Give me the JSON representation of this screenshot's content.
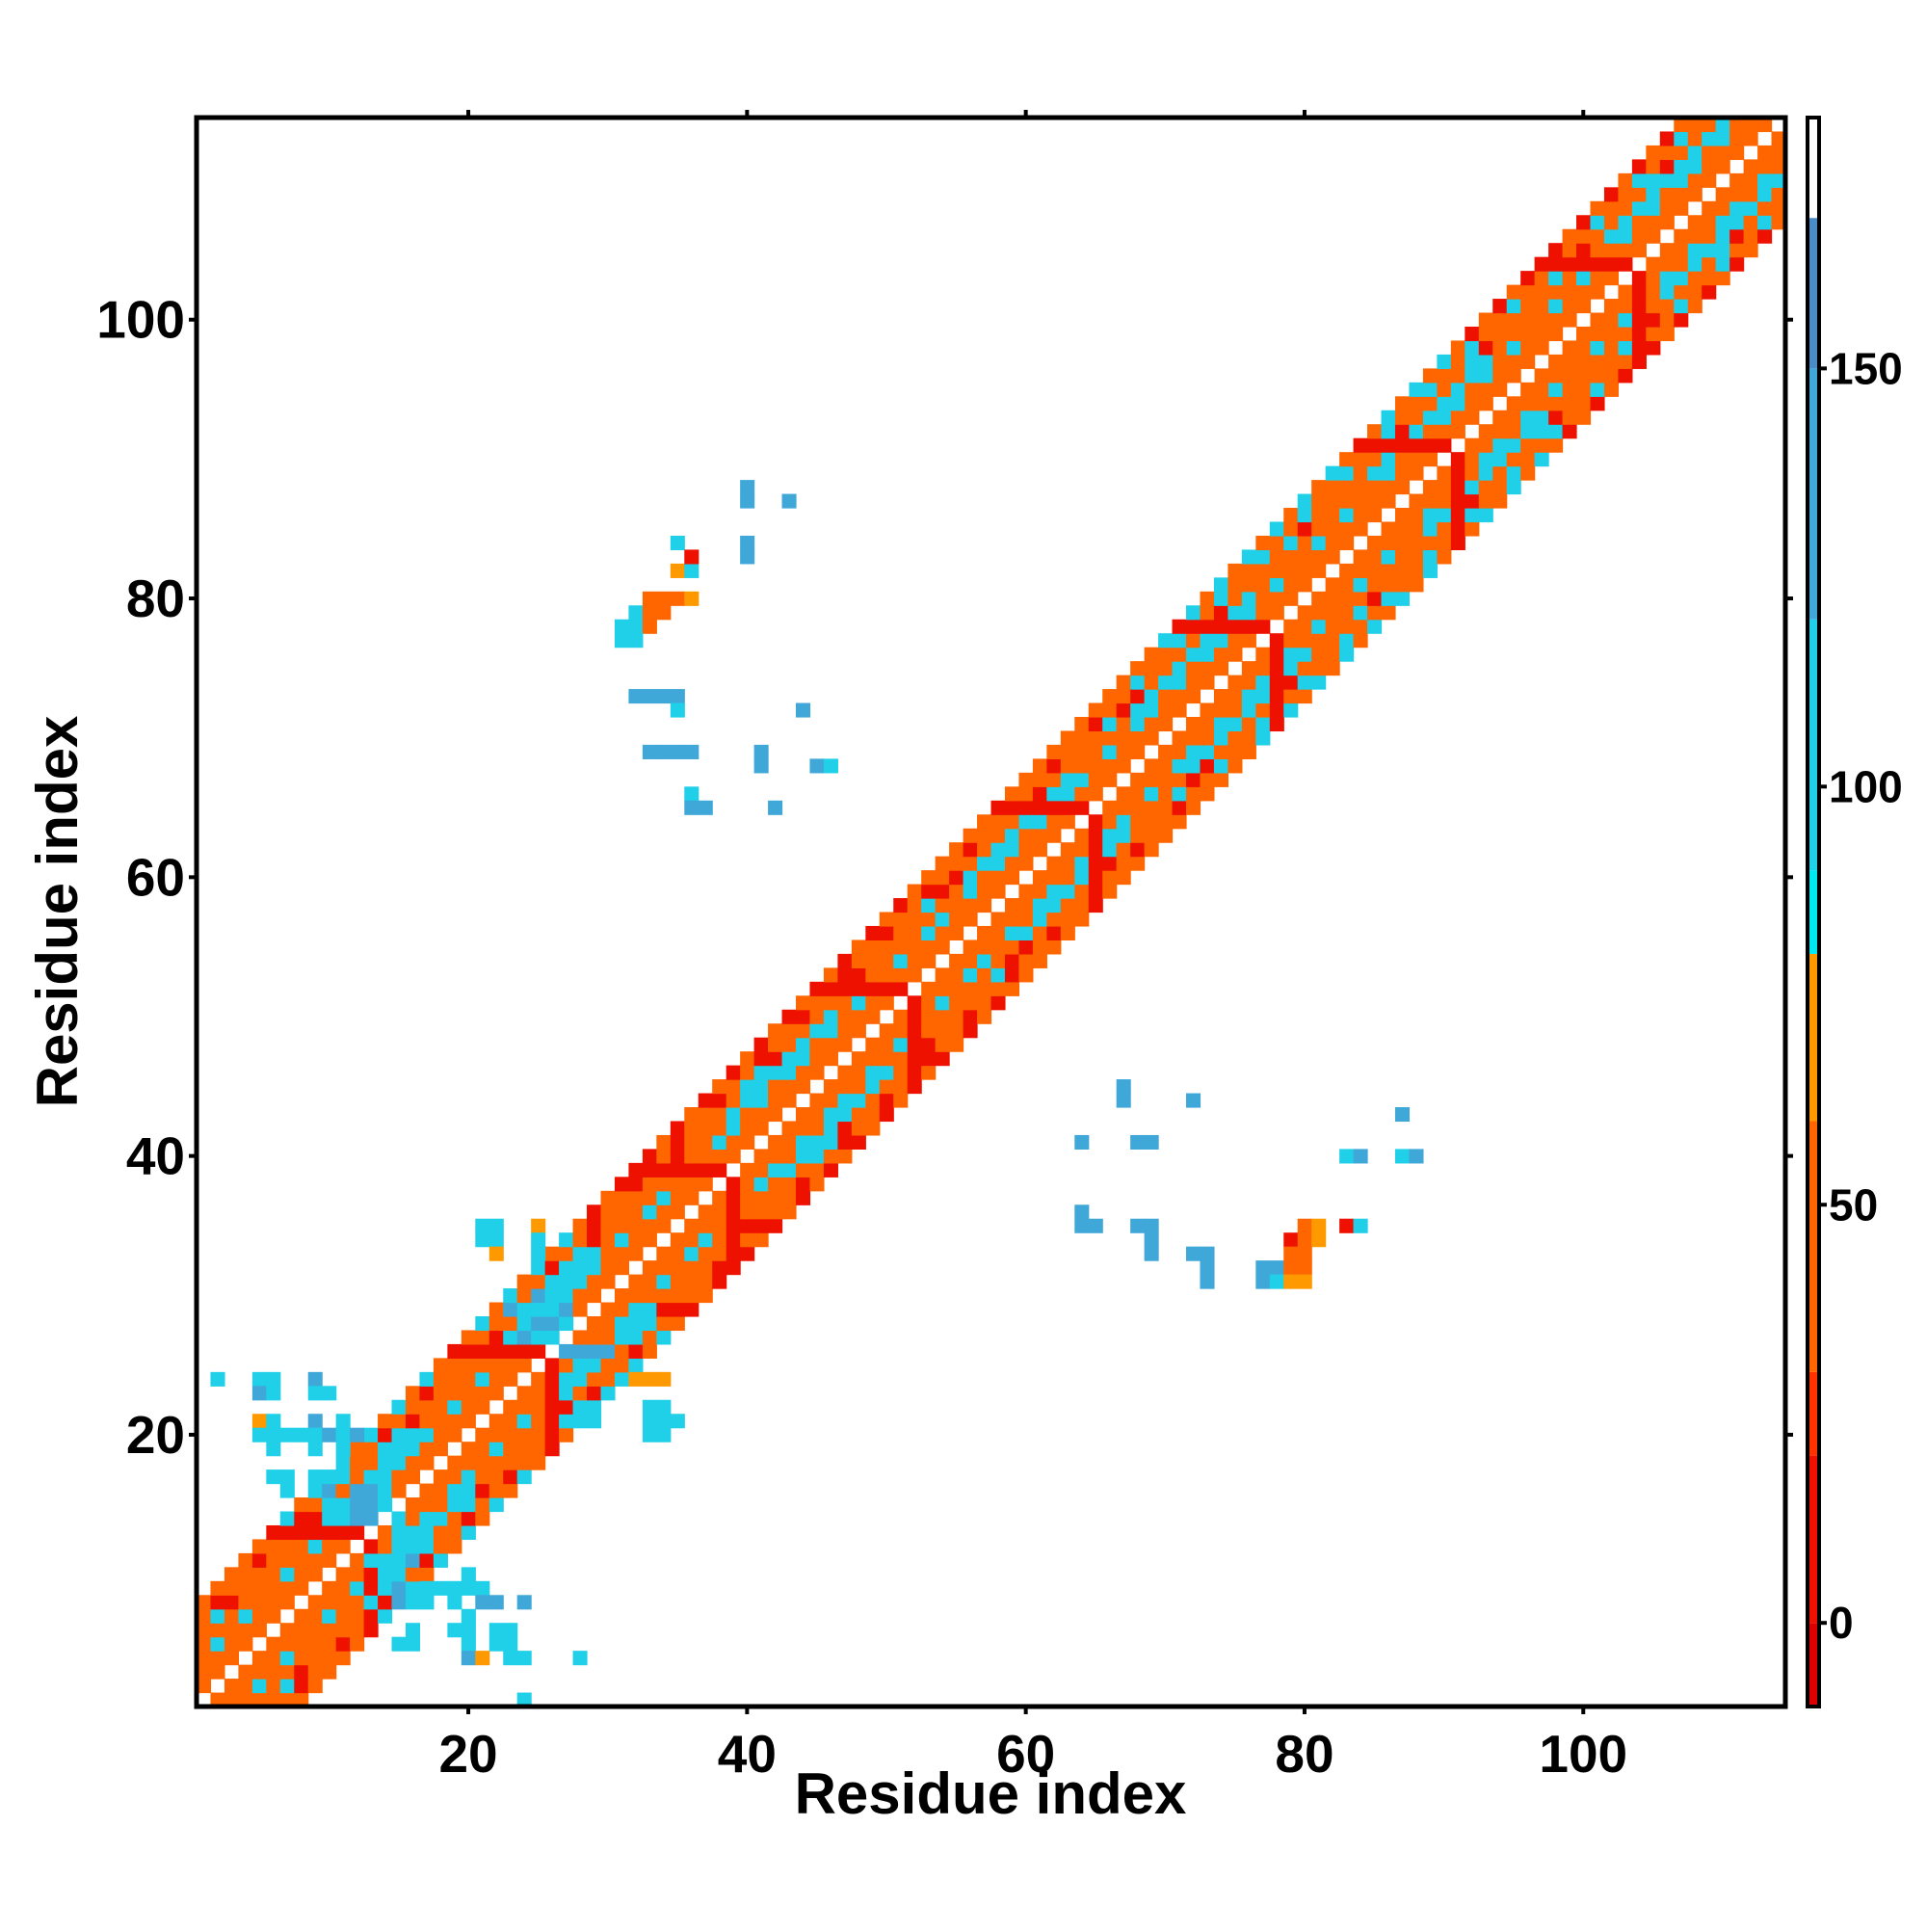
{
  "chart_data": {
    "type": "heatmap",
    "title": "",
    "xlabel": "Residue index",
    "ylabel": "Residue index",
    "xlim": [
      0.5,
      114.5
    ],
    "ylim": [
      0.5,
      114.5
    ],
    "x_ticks": [
      20,
      40,
      60,
      80,
      100
    ],
    "y_ticks": [
      20,
      40,
      60,
      80,
      100
    ],
    "x_tick_labels": [
      "20",
      "40",
      "60",
      "80",
      "100"
    ],
    "y_tick_labels": [
      "20",
      "40",
      "60",
      "80",
      "100"
    ],
    "colorbar": {
      "range": [
        -10,
        180
      ],
      "ticks": [
        0,
        50,
        100,
        150
      ],
      "tick_labels": [
        "0",
        "50",
        "100",
        "150"
      ],
      "bands": [
        {
          "from": -10,
          "to": 0,
          "color": "#dd0000"
        },
        {
          "from": 0,
          "to": 20,
          "color": "#ee1100"
        },
        {
          "from": 20,
          "to": 30,
          "color": "#ff3300"
        },
        {
          "from": 30,
          "to": 60,
          "color": "#ff6600"
        },
        {
          "from": 60,
          "to": 80,
          "color": "#ff9900"
        },
        {
          "from": 80,
          "to": 90,
          "color": "#00e8f0"
        },
        {
          "from": 90,
          "to": 120,
          "color": "#20d0e8"
        },
        {
          "from": 120,
          "to": 150,
          "color": "#40a8d8"
        },
        {
          "from": 150,
          "to": 168,
          "color": "#4a8cc8"
        },
        {
          "from": 168,
          "to": 180,
          "color": "#ffffff"
        }
      ]
    },
    "colors": {
      "red": "#dd0000",
      "orange_red": "#ff3300",
      "orange": "#ff6600",
      "amber": "#ff9900",
      "cyan": "#00e8f0",
      "sky": "#20d0e8",
      "steel": "#40a8d8",
      "blue": "#4a8cc8"
    },
    "diagonal_pattern": {
      "near_diagonal_value_orange": 45,
      "band_value_cyan": 95,
      "band_value_orange_red": 30,
      "band_value_red": 5,
      "band_width": 7
    },
    "cells": [
      [
        33,
        80,
        45
      ],
      [
        34,
        80,
        30
      ],
      [
        35,
        80,
        30
      ],
      [
        36,
        80,
        70
      ],
      [
        32,
        79,
        95
      ],
      [
        33,
        79,
        30
      ],
      [
        34,
        79,
        30
      ],
      [
        31,
        78,
        95
      ],
      [
        32,
        78,
        95
      ],
      [
        33,
        78,
        30
      ],
      [
        31,
        77,
        95
      ],
      [
        32,
        77,
        95
      ],
      [
        35,
        82,
        70
      ],
      [
        36,
        82,
        95
      ],
      [
        35,
        84,
        95
      ],
      [
        36,
        83,
        5
      ],
      [
        40,
        88,
        130
      ],
      [
        40,
        87,
        130
      ],
      [
        43,
        87,
        140
      ],
      [
        40,
        84,
        130
      ],
      [
        40,
        83,
        130
      ],
      [
        32,
        73,
        140
      ],
      [
        33,
        73,
        140
      ],
      [
        34,
        73,
        140
      ],
      [
        35,
        73,
        140
      ],
      [
        35,
        72,
        95
      ],
      [
        44,
        72,
        140
      ],
      [
        33,
        69,
        140
      ],
      [
        34,
        69,
        140
      ],
      [
        35,
        69,
        130
      ],
      [
        36,
        69,
        140
      ],
      [
        41,
        69,
        130
      ],
      [
        41,
        68,
        130
      ],
      [
        45,
        68,
        140
      ],
      [
        46,
        68,
        95
      ],
      [
        36,
        66,
        95
      ],
      [
        37,
        65,
        140
      ],
      [
        36,
        65,
        140
      ],
      [
        42,
        65,
        130
      ],
      [
        67,
        45,
        130
      ],
      [
        67,
        44,
        130
      ],
      [
        72,
        44,
        140
      ],
      [
        64,
        41,
        130
      ],
      [
        68,
        41,
        130
      ],
      [
        69,
        41,
        130
      ],
      [
        64,
        36,
        130
      ],
      [
        64,
        35,
        130
      ],
      [
        65,
        35,
        140
      ],
      [
        68,
        35,
        130
      ],
      [
        69,
        35,
        130
      ],
      [
        69,
        34,
        130
      ],
      [
        69,
        33,
        130
      ],
      [
        72,
        33,
        130
      ],
      [
        73,
        33,
        140
      ],
      [
        73,
        32,
        140
      ],
      [
        73,
        31,
        140
      ],
      [
        87,
        43,
        140
      ],
      [
        83,
        40,
        95
      ],
      [
        84,
        40,
        130
      ],
      [
        87,
        40,
        95
      ],
      [
        88,
        40,
        140
      ],
      [
        80,
        35,
        30
      ],
      [
        81,
        35,
        70
      ],
      [
        83,
        35,
        5
      ],
      [
        84,
        35,
        95
      ],
      [
        79,
        34,
        5
      ],
      [
        80,
        34,
        30
      ],
      [
        81,
        34,
        70
      ],
      [
        79,
        33,
        30
      ],
      [
        80,
        33,
        30
      ],
      [
        77,
        32,
        140
      ],
      [
        78,
        32,
        140
      ],
      [
        79,
        32,
        30
      ],
      [
        80,
        32,
        30
      ],
      [
        77,
        31,
        140
      ],
      [
        78,
        31,
        95
      ],
      [
        79,
        31,
        70
      ],
      [
        80,
        31,
        70
      ],
      [
        21,
        35,
        95
      ],
      [
        22,
        35,
        95
      ],
      [
        25,
        35,
        70
      ],
      [
        21,
        34,
        95
      ],
      [
        22,
        34,
        95
      ],
      [
        25,
        34,
        95
      ],
      [
        22,
        33,
        70
      ],
      [
        25,
        33,
        95
      ],
      [
        26,
        31,
        95
      ],
      [
        27,
        31,
        95
      ],
      [
        25,
        30,
        130
      ],
      [
        26,
        30,
        95
      ],
      [
        27,
        30,
        95
      ],
      [
        23,
        29,
        140
      ],
      [
        24,
        29,
        95
      ],
      [
        26,
        29,
        95
      ],
      [
        27,
        29,
        130
      ],
      [
        24,
        28,
        95
      ],
      [
        25,
        28,
        130
      ],
      [
        26,
        28,
        130
      ],
      [
        27,
        28,
        95
      ],
      [
        24,
        27,
        140
      ],
      [
        25,
        27,
        95
      ],
      [
        26,
        27,
        95
      ],
      [
        27,
        26,
        130
      ],
      [
        28,
        26,
        130
      ],
      [
        29,
        26,
        130
      ],
      [
        30,
        26,
        130
      ],
      [
        28,
        25,
        95
      ],
      [
        29,
        25,
        95
      ],
      [
        31,
        24,
        95
      ],
      [
        32,
        24,
        70
      ],
      [
        33,
        24,
        70
      ],
      [
        34,
        24,
        70
      ],
      [
        33,
        22,
        95
      ],
      [
        34,
        22,
        95
      ],
      [
        28,
        22,
        95
      ],
      [
        29,
        22,
        95
      ],
      [
        27,
        21,
        95
      ],
      [
        28,
        21,
        95
      ],
      [
        29,
        21,
        95
      ],
      [
        33,
        21,
        95
      ],
      [
        34,
        21,
        95
      ],
      [
        35,
        21,
        95
      ],
      [
        33,
        20,
        95
      ],
      [
        34,
        20,
        95
      ],
      [
        2,
        24,
        95
      ],
      [
        5,
        24,
        95
      ],
      [
        6,
        24,
        95
      ],
      [
        9,
        24,
        130
      ],
      [
        5,
        23,
        140
      ],
      [
        6,
        23,
        95
      ],
      [
        9,
        23,
        95
      ],
      [
        10,
        23,
        95
      ],
      [
        5,
        21,
        70
      ],
      [
        6,
        21,
        95
      ],
      [
        9,
        21,
        140
      ],
      [
        11,
        21,
        95
      ],
      [
        5,
        20,
        95
      ],
      [
        6,
        20,
        95
      ],
      [
        7,
        20,
        95
      ],
      [
        8,
        20,
        95
      ],
      [
        9,
        20,
        95
      ],
      [
        10,
        20,
        130
      ],
      [
        11,
        20,
        95
      ],
      [
        12,
        20,
        130
      ],
      [
        6,
        19,
        95
      ],
      [
        9,
        19,
        95
      ],
      [
        11,
        19,
        95
      ],
      [
        14,
        19,
        95
      ],
      [
        15,
        19,
        95
      ],
      [
        16,
        19,
        95
      ],
      [
        14,
        18,
        95
      ],
      [
        15,
        18,
        95
      ],
      [
        6,
        17,
        95
      ],
      [
        7,
        17,
        95
      ],
      [
        9,
        17,
        95
      ],
      [
        10,
        17,
        95
      ],
      [
        11,
        17,
        95
      ],
      [
        7,
        16,
        95
      ],
      [
        10,
        16,
        130
      ],
      [
        12,
        16,
        130
      ],
      [
        13,
        16,
        130
      ],
      [
        14,
        16,
        95
      ],
      [
        10,
        15,
        95
      ],
      [
        11,
        15,
        95
      ],
      [
        12,
        15,
        130
      ],
      [
        13,
        15,
        130
      ],
      [
        14,
        15,
        95
      ],
      [
        11,
        14,
        95
      ],
      [
        12,
        14,
        130
      ],
      [
        13,
        14,
        130
      ],
      [
        15,
        14,
        95
      ],
      [
        17,
        14,
        95
      ],
      [
        15,
        13,
        95
      ],
      [
        16,
        13,
        95
      ],
      [
        17,
        13,
        95
      ],
      [
        15,
        12,
        95
      ],
      [
        16,
        12,
        95
      ],
      [
        17,
        12,
        95
      ],
      [
        13,
        11,
        95
      ],
      [
        14,
        11,
        95
      ],
      [
        15,
        11,
        95
      ],
      [
        16,
        11,
        130
      ],
      [
        14,
        10,
        95
      ],
      [
        15,
        10,
        95
      ],
      [
        20,
        10,
        95
      ],
      [
        14,
        9,
        95
      ],
      [
        15,
        9,
        130
      ],
      [
        16,
        9,
        95
      ],
      [
        17,
        9,
        95
      ],
      [
        18,
        9,
        95
      ],
      [
        19,
        9,
        95
      ],
      [
        20,
        9,
        95
      ],
      [
        21,
        9,
        95
      ],
      [
        13,
        8,
        95
      ],
      [
        15,
        8,
        130
      ],
      [
        16,
        8,
        95
      ],
      [
        17,
        8,
        95
      ],
      [
        19,
        8,
        95
      ],
      [
        21,
        8,
        130
      ],
      [
        22,
        8,
        130
      ],
      [
        24,
        8,
        130
      ],
      [
        20,
        7,
        95
      ],
      [
        16,
        6,
        95
      ],
      [
        19,
        6,
        95
      ],
      [
        20,
        6,
        95
      ],
      [
        22,
        6,
        95
      ],
      [
        23,
        6,
        95
      ],
      [
        15,
        5,
        95
      ],
      [
        16,
        5,
        95
      ],
      [
        20,
        5,
        95
      ],
      [
        22,
        5,
        95
      ],
      [
        23,
        5,
        95
      ],
      [
        20,
        4,
        130
      ],
      [
        21,
        4,
        70
      ],
      [
        23,
        4,
        95
      ],
      [
        24,
        4,
        95
      ],
      [
        28,
        4,
        95
      ],
      [
        24,
        1,
        95
      ]
    ]
  }
}
